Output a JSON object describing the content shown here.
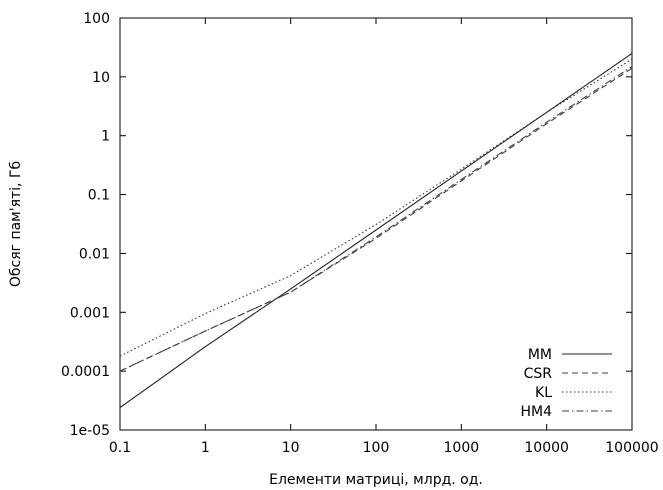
{
  "chart_data": {
    "type": "line",
    "title": "",
    "xlabel": "Елементи матриці, млрд. од.",
    "ylabel": "Обсяг пам'яті, Гб",
    "x_scale": "log",
    "y_scale": "log",
    "xlim": [
      0.1,
      100000
    ],
    "ylim": [
      1e-05,
      100
    ],
    "x_ticks": [
      "0.1",
      "1",
      "10",
      "100",
      "1000",
      "10000",
      "100000"
    ],
    "y_ticks": [
      "1e-05",
      "0.0001",
      "0.001",
      "0.01",
      "0.1",
      "1",
      "10",
      "100"
    ],
    "grid": false,
    "legend_position": "bottom-right",
    "x": [
      0.1,
      1,
      10,
      100,
      1000,
      10000,
      100000
    ],
    "series": [
      {
        "name": "MM",
        "style": "solid",
        "values": [
          2.4e-05,
          0.00026,
          0.0025,
          0.025,
          0.25,
          2.5,
          25
        ]
      },
      {
        "name": "CSR",
        "style": "dashed",
        "values": [
          0.0001,
          0.00048,
          0.0022,
          0.018,
          0.17,
          1.6,
          14
        ]
      },
      {
        "name": "KL",
        "style": "dotted",
        "values": [
          0.00018,
          0.00095,
          0.0042,
          0.031,
          0.27,
          2.5,
          20
        ]
      },
      {
        "name": "HM4",
        "style": "dashdot",
        "values": [
          0.0001,
          0.00048,
          0.0022,
          0.019,
          0.18,
          1.7,
          15
        ]
      }
    ]
  }
}
